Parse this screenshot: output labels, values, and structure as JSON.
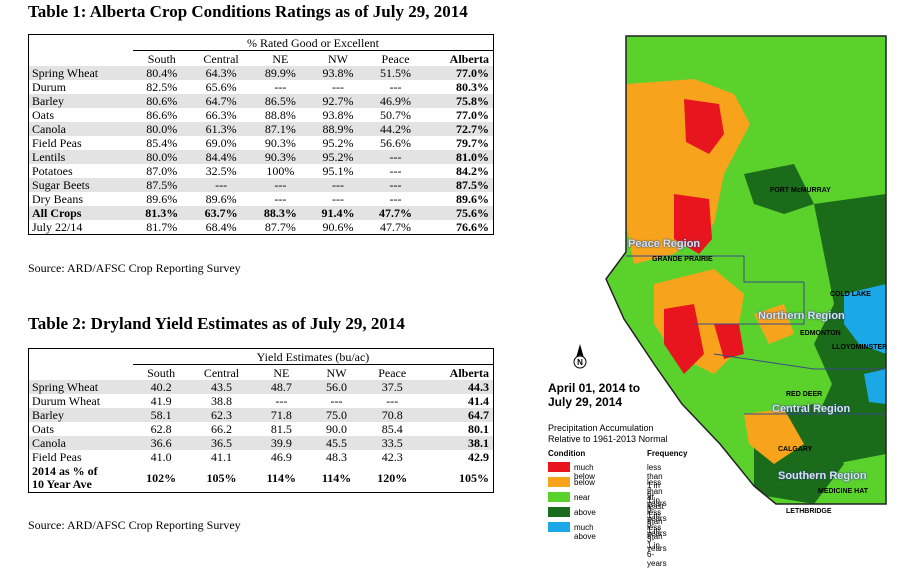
{
  "table1": {
    "title": "Table 1: Alberta Crop Conditions Ratings as of July 29, 2014",
    "group_header": "% Rated Good or Excellent",
    "columns": [
      "South",
      "Central",
      "NE",
      "NW",
      "Peace",
      "Alberta"
    ],
    "rows": [
      {
        "label": "Spring Wheat",
        "values": [
          "80.4%",
          "64.3%",
          "89.9%",
          "93.8%",
          "51.5%",
          "77.0%"
        ]
      },
      {
        "label": "Durum",
        "values": [
          "82.5%",
          "65.6%",
          "---",
          "---",
          "---",
          "80.3%"
        ]
      },
      {
        "label": "Barley",
        "values": [
          "80.6%",
          "64.7%",
          "86.5%",
          "92.7%",
          "46.9%",
          "75.8%"
        ]
      },
      {
        "label": "Oats",
        "values": [
          "86.6%",
          "66.3%",
          "88.8%",
          "93.8%",
          "50.7%",
          "77.0%"
        ]
      },
      {
        "label": "Canola",
        "values": [
          "80.0%",
          "61.3%",
          "87.1%",
          "88.9%",
          "44.2%",
          "72.7%"
        ]
      },
      {
        "label": "Field Peas",
        "values": [
          "85.4%",
          "69.0%",
          "90.3%",
          "95.2%",
          "56.6%",
          "79.7%"
        ]
      },
      {
        "label": "Lentils",
        "values": [
          "80.0%",
          "84.4%",
          "90.3%",
          "95.2%",
          "---",
          "81.0%"
        ]
      },
      {
        "label": "Potatoes",
        "values": [
          "87.0%",
          "32.5%",
          "100%",
          "95.1%",
          "---",
          "84.2%"
        ]
      },
      {
        "label": "Sugar Beets",
        "values": [
          "87.5%",
          "---",
          "---",
          "---",
          "---",
          "87.5%"
        ]
      },
      {
        "label": "Dry Beans",
        "values": [
          "89.6%",
          "89.6%",
          "---",
          "---",
          "---",
          "89.6%"
        ]
      },
      {
        "label": "All Crops",
        "values": [
          "81.3%",
          "63.7%",
          "88.3%",
          "91.4%",
          "47.7%",
          "75.6%"
        ]
      },
      {
        "label": "July 22/14",
        "values": [
          "81.7%",
          "68.4%",
          "87.7%",
          "90.6%",
          "47.7%",
          "76.6%"
        ]
      }
    ],
    "source": "Source: ARD/AFSC Crop Reporting Survey"
  },
  "table2": {
    "title": "Table 2: Dryland Yield Estimates as of July 29, 2014",
    "group_header": "Yield Estimates (bu/ac)",
    "columns": [
      "South",
      "Central",
      "NE",
      "NW",
      "Peace",
      "Alberta"
    ],
    "rows": [
      {
        "label": "Spring Wheat",
        "values": [
          "40.2",
          "43.5",
          "48.7",
          "56.0",
          "37.5",
          "44.3"
        ]
      },
      {
        "label": "Durum Wheat",
        "values": [
          "41.9",
          "38.8",
          "---",
          "---",
          "---",
          "41.4"
        ]
      },
      {
        "label": "Barley",
        "values": [
          "58.1",
          "62.3",
          "71.8",
          "75.0",
          "70.8",
          "64.7"
        ]
      },
      {
        "label": "Oats",
        "values": [
          "62.8",
          "66.2",
          "81.5",
          "90.0",
          "85.4",
          "80.1"
        ]
      },
      {
        "label": "Canola",
        "values": [
          "36.6",
          "36.5",
          "39.9",
          "45.5",
          "33.5",
          "38.1"
        ]
      },
      {
        "label": "Field Peas",
        "values": [
          "41.0",
          "41.1",
          "46.9",
          "48.3",
          "42.3",
          "42.9"
        ]
      }
    ],
    "footer_label_line1": "2014 as % of",
    "footer_label_line2": "10 Year Ave",
    "footer_values": [
      "102%",
      "105%",
      "114%",
      "114%",
      "120%",
      "105%"
    ],
    "source": "Source: ARD/AFSC Crop Reporting Survey"
  },
  "map": {
    "date_line1": "April 01, 2014 to",
    "date_line2": "July 29, 2014",
    "desc_line1": "Precipitation Accumulation",
    "desc_line2": "Relative to 1961-2013 Normal",
    "north_label": "N",
    "cities": {
      "fort_mcmurray": "FORT McMURRAY",
      "grande_prairie": "GRANDE PRAIRIE",
      "cold_lake": "COLD LAKE",
      "edmonton": "EDMONTON",
      "lloydminster": "LLOYDMINSTER",
      "red_deer": "RED DEER",
      "calgary": "CALGARY",
      "medicine_hat": "MEDICINE HAT",
      "lethbridge": "LETHBRIDGE"
    },
    "regions": {
      "peace": "Peace Region",
      "northern": "Northern Region",
      "central": "Central Region",
      "southern": "Southern Region"
    },
    "legend": {
      "condition_header": "Condition",
      "frequency_header": "Frequency",
      "items": [
        {
          "condition": "much below",
          "frequency": "less than 1 in 6-years",
          "color": "#e8141e"
        },
        {
          "condition": "below",
          "frequency": "less than 1 in 3-years",
          "color": "#f7a41c"
        },
        {
          "condition": "near",
          "frequency": "at least 1 in 3-years",
          "color": "#5bd12c"
        },
        {
          "condition": "above",
          "frequency": "less than 1 in 3-years",
          "color": "#1a6b1a"
        },
        {
          "condition": "much above",
          "frequency": "less than 1 in 6-years",
          "color": "#1aa9e6"
        }
      ]
    }
  }
}
